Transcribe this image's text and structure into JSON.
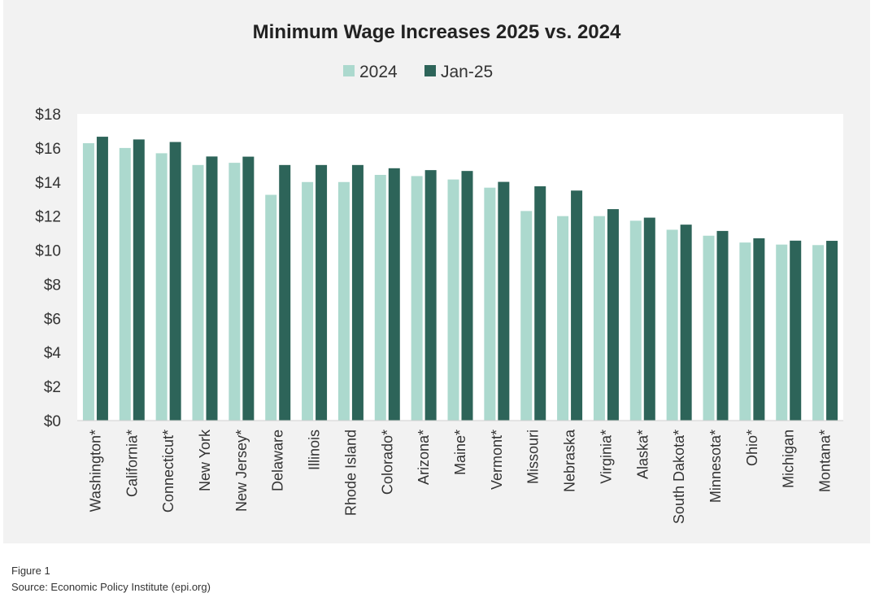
{
  "chart_data": {
    "type": "bar",
    "title": "Minimum Wage Increases 2025 vs. 2024",
    "legend_position": "top",
    "categories": [
      "Washington*",
      "California*",
      "Connecticut*",
      "New York",
      "New Jersey*",
      "Delaware",
      "Illinois",
      "Rhode Island",
      "Colorado*",
      "Arizona*",
      "Maine*",
      "Vermont*",
      "Missouri",
      "Nebraska",
      "Virginia*",
      "Alaska*",
      "South Dakota*",
      "Minnesota*",
      "Ohio*",
      "Michigan",
      "Montana*"
    ],
    "series": [
      {
        "name": "2024",
        "color": "#acd9ce",
        "values": [
          16.28,
          16.0,
          15.69,
          15.0,
          15.13,
          13.25,
          14.0,
          14.0,
          14.42,
          14.35,
          14.15,
          13.67,
          12.3,
          12.0,
          12.0,
          11.73,
          11.2,
          10.85,
          10.45,
          10.33,
          10.3
        ]
      },
      {
        "name": "Jan-25",
        "color": "#2d6459",
        "values": [
          16.66,
          16.5,
          16.35,
          15.5,
          15.49,
          15.0,
          15.0,
          15.0,
          14.81,
          14.7,
          14.65,
          14.01,
          13.75,
          13.5,
          12.41,
          11.91,
          11.5,
          11.13,
          10.7,
          10.56,
          10.55
        ]
      }
    ],
    "ylim": [
      0,
      18
    ],
    "yticks": [
      0,
      2,
      4,
      6,
      8,
      10,
      12,
      14,
      16,
      18
    ],
    "ytick_labels": [
      "$0",
      "$2",
      "$4",
      "$6",
      "$8",
      "$10",
      "$12",
      "$14",
      "$16",
      "$18"
    ],
    "grid": false
  },
  "footer": {
    "figure": "Figure 1",
    "source": "Source: Economic Policy Institute (epi.org)"
  }
}
